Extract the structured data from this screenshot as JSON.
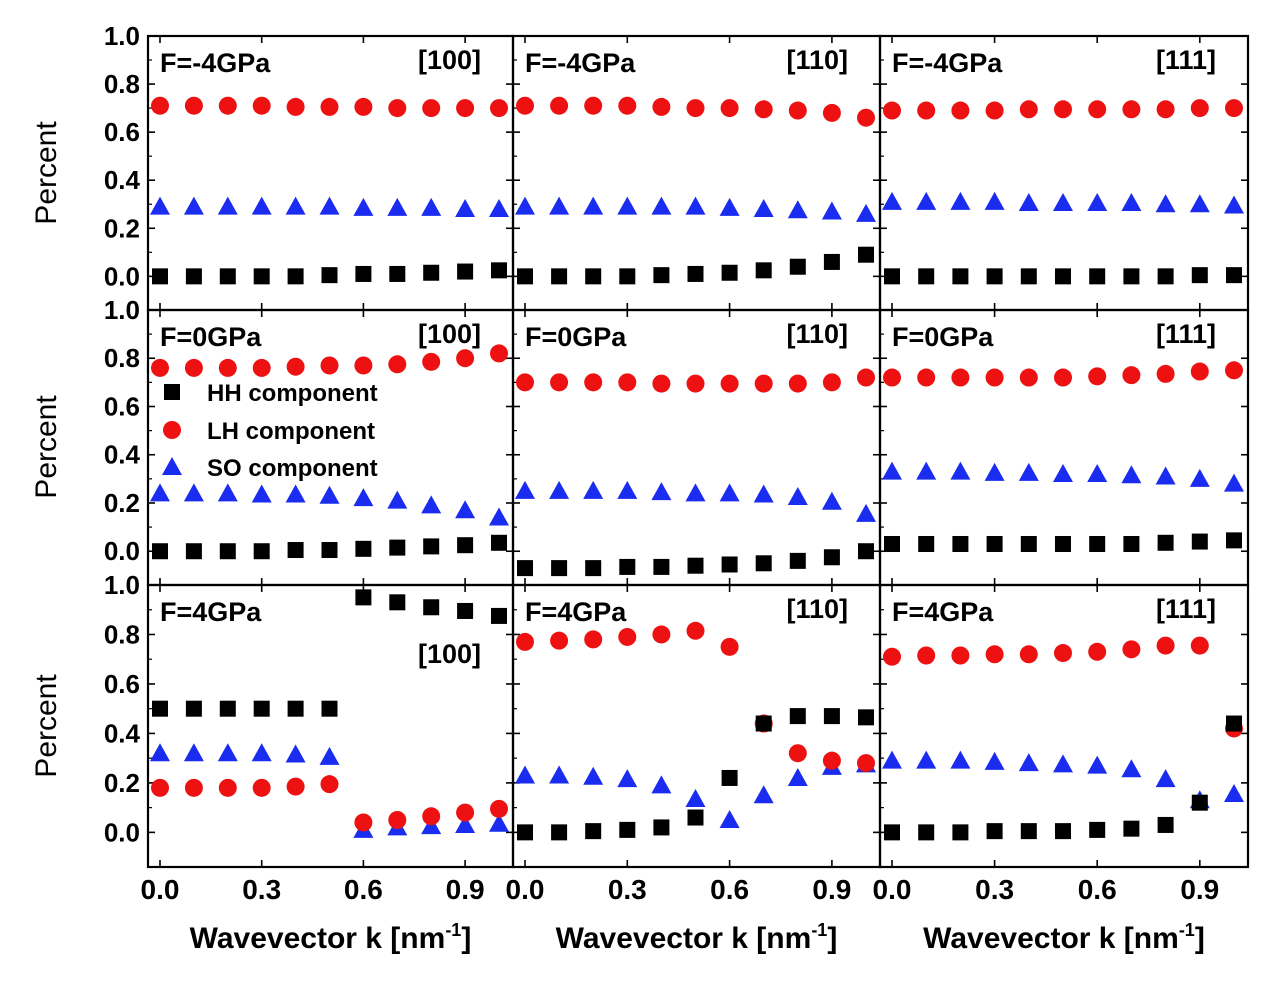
{
  "figure": {
    "y_label": "Percent",
    "x_label": "Wavevector k [nm",
    "x_label_sup": "-1",
    "x_label_end": "]",
    "ylim": [
      -0.14,
      1.0
    ],
    "xlim": [
      -0.03,
      1.03
    ],
    "y_ticks": [
      "1.0",
      "0.8",
      "0.6",
      "0.4",
      "0.2",
      "0.0"
    ],
    "y_tick_values": [
      1.0,
      0.8,
      0.6,
      0.4,
      0.2,
      0.0
    ],
    "x_ticks": [
      "0.0",
      "0.3",
      "0.6",
      "0.9"
    ],
    "x_tick_values": [
      0.0,
      0.3,
      0.6,
      0.9
    ],
    "legend": {
      "hh": "HH component",
      "lh": "LH component",
      "so": "SO component"
    },
    "colors": {
      "hh": "#000000",
      "lh": "#ee1111",
      "so": "#1a2cf0"
    }
  },
  "chart_data": [
    {
      "type": "scatter",
      "row": 0,
      "col": 0,
      "force": "F=-4GPa",
      "direction": "[100]",
      "x": [
        0.0,
        0.1,
        0.2,
        0.3,
        0.4,
        0.5,
        0.6,
        0.7,
        0.8,
        0.9,
        1.0
      ],
      "series": [
        {
          "name": "HH component",
          "values": [
            0.0,
            0.0,
            0.0,
            0.0,
            0.0,
            0.005,
            0.01,
            0.01,
            0.015,
            0.02,
            0.025
          ]
        },
        {
          "name": "LH component",
          "values": [
            0.71,
            0.71,
            0.71,
            0.71,
            0.705,
            0.705,
            0.705,
            0.7,
            0.7,
            0.7,
            0.7
          ]
        },
        {
          "name": "SO component",
          "values": [
            0.29,
            0.29,
            0.29,
            0.29,
            0.29,
            0.29,
            0.285,
            0.285,
            0.285,
            0.28,
            0.28
          ]
        }
      ]
    },
    {
      "type": "scatter",
      "row": 0,
      "col": 1,
      "force": "F=-4GPa",
      "direction": "[110]",
      "x": [
        0.0,
        0.1,
        0.2,
        0.3,
        0.4,
        0.5,
        0.6,
        0.7,
        0.8,
        0.9,
        1.0
      ],
      "series": [
        {
          "name": "HH component",
          "values": [
            0.0,
            0.0,
            0.0,
            0.0,
            0.005,
            0.01,
            0.015,
            0.025,
            0.04,
            0.06,
            0.09
          ]
        },
        {
          "name": "LH component",
          "values": [
            0.71,
            0.71,
            0.71,
            0.71,
            0.705,
            0.7,
            0.7,
            0.695,
            0.69,
            0.68,
            0.66
          ]
        },
        {
          "name": "SO component",
          "values": [
            0.29,
            0.29,
            0.29,
            0.29,
            0.29,
            0.29,
            0.285,
            0.28,
            0.275,
            0.27,
            0.26
          ]
        }
      ]
    },
    {
      "type": "scatter",
      "row": 0,
      "col": 2,
      "force": "F=-4GPa",
      "direction": "[111]",
      "x": [
        0.0,
        0.1,
        0.2,
        0.3,
        0.4,
        0.5,
        0.6,
        0.7,
        0.8,
        0.9,
        1.0
      ],
      "series": [
        {
          "name": "HH component",
          "values": [
            0.0,
            0.0,
            0.0,
            0.0,
            0.0,
            0.0,
            0.0,
            0.0,
            0.0,
            0.005,
            0.005
          ]
        },
        {
          "name": "LH component",
          "values": [
            0.69,
            0.69,
            0.69,
            0.69,
            0.695,
            0.695,
            0.695,
            0.695,
            0.695,
            0.7,
            0.7
          ]
        },
        {
          "name": "SO component",
          "values": [
            0.31,
            0.31,
            0.31,
            0.31,
            0.305,
            0.305,
            0.305,
            0.305,
            0.3,
            0.3,
            0.295
          ]
        }
      ]
    },
    {
      "type": "scatter",
      "row": 1,
      "col": 0,
      "force": "F=0GPa",
      "direction": "[100]",
      "x": [
        0.0,
        0.1,
        0.2,
        0.3,
        0.4,
        0.5,
        0.6,
        0.7,
        0.8,
        0.9,
        1.0
      ],
      "series": [
        {
          "name": "HH component",
          "values": [
            0.0,
            0.0,
            0.0,
            0.0,
            0.005,
            0.005,
            0.01,
            0.015,
            0.02,
            0.025,
            0.035
          ]
        },
        {
          "name": "LH component",
          "values": [
            0.76,
            0.76,
            0.76,
            0.76,
            0.765,
            0.77,
            0.77,
            0.775,
            0.785,
            0.8,
            0.82
          ]
        },
        {
          "name": "SO component",
          "values": [
            0.24,
            0.24,
            0.24,
            0.235,
            0.235,
            0.23,
            0.22,
            0.21,
            0.19,
            0.17,
            0.14
          ]
        }
      ]
    },
    {
      "type": "scatter",
      "row": 1,
      "col": 1,
      "force": "F=0GPa",
      "direction": "[110]",
      "x": [
        0.0,
        0.1,
        0.2,
        0.3,
        0.4,
        0.5,
        0.6,
        0.7,
        0.8,
        0.9,
        1.0
      ],
      "series": [
        {
          "name": "HH component",
          "values": [
            -0.07,
            -0.07,
            -0.07,
            -0.065,
            -0.065,
            -0.06,
            -0.055,
            -0.05,
            -0.04,
            -0.025,
            0.0
          ]
        },
        {
          "name": "LH component",
          "values": [
            0.7,
            0.7,
            0.7,
            0.7,
            0.695,
            0.695,
            0.695,
            0.695,
            0.695,
            0.7,
            0.72
          ]
        },
        {
          "name": "SO component",
          "values": [
            0.25,
            0.25,
            0.25,
            0.25,
            0.245,
            0.24,
            0.24,
            0.235,
            0.225,
            0.205,
            0.155
          ]
        }
      ]
    },
    {
      "type": "scatter",
      "row": 1,
      "col": 2,
      "force": "F=0GPa",
      "direction": "[111]",
      "x": [
        0.0,
        0.1,
        0.2,
        0.3,
        0.4,
        0.5,
        0.6,
        0.7,
        0.8,
        0.9,
        1.0
      ],
      "series": [
        {
          "name": "HH component",
          "values": [
            0.03,
            0.03,
            0.03,
            0.03,
            0.03,
            0.03,
            0.03,
            0.03,
            0.035,
            0.04,
            0.045
          ]
        },
        {
          "name": "LH component",
          "values": [
            0.72,
            0.72,
            0.72,
            0.72,
            0.72,
            0.72,
            0.725,
            0.73,
            0.735,
            0.745,
            0.75
          ]
        },
        {
          "name": "SO component",
          "values": [
            0.33,
            0.33,
            0.33,
            0.325,
            0.325,
            0.32,
            0.32,
            0.315,
            0.31,
            0.3,
            0.28
          ]
        }
      ]
    },
    {
      "type": "scatter",
      "row": 2,
      "col": 0,
      "force": "F=4GPa",
      "direction": "[100]",
      "x": [
        0.0,
        0.1,
        0.2,
        0.3,
        0.4,
        0.5,
        0.6,
        0.7,
        0.8,
        0.9,
        1.0
      ],
      "series": [
        {
          "name": "HH component",
          "values": [
            0.5,
            0.5,
            0.5,
            0.5,
            0.5,
            0.5,
            0.95,
            0.93,
            0.91,
            0.895,
            0.875
          ]
        },
        {
          "name": "LH component",
          "values": [
            0.18,
            0.18,
            0.18,
            0.18,
            0.185,
            0.195,
            0.04,
            0.05,
            0.065,
            0.08,
            0.095
          ]
        },
        {
          "name": "SO component",
          "values": [
            0.32,
            0.32,
            0.32,
            0.32,
            0.315,
            0.305,
            0.01,
            0.02,
            0.025,
            0.03,
            0.035
          ]
        }
      ]
    },
    {
      "type": "scatter",
      "row": 2,
      "col": 1,
      "force": "F=4GPa",
      "direction": "[110]",
      "x": [
        0.0,
        0.1,
        0.2,
        0.3,
        0.4,
        0.5,
        0.6,
        0.7,
        0.8,
        0.9,
        1.0
      ],
      "series": [
        {
          "name": "HH component",
          "values": [
            0.0,
            0.0,
            0.005,
            0.01,
            0.02,
            0.06,
            0.22,
            0.44,
            0.47,
            0.47,
            0.465
          ]
        },
        {
          "name": "LH component",
          "values": [
            0.77,
            0.775,
            0.78,
            0.79,
            0.8,
            0.815,
            0.75,
            0.44,
            0.32,
            0.29,
            0.28
          ]
        },
        {
          "name": "SO component",
          "values": [
            0.23,
            0.23,
            0.225,
            0.215,
            0.19,
            0.135,
            0.05,
            0.15,
            0.22,
            0.265,
            0.275
          ]
        }
      ]
    },
    {
      "type": "scatter",
      "row": 2,
      "col": 2,
      "force": "F=4GPa",
      "direction": "[111]",
      "x": [
        0.0,
        0.1,
        0.2,
        0.3,
        0.4,
        0.5,
        0.6,
        0.7,
        0.8,
        0.9,
        1.0
      ],
      "series": [
        {
          "name": "HH component",
          "values": [
            0.0,
            0.0,
            0.0,
            0.005,
            0.005,
            0.005,
            0.01,
            0.015,
            0.03,
            0.12,
            0.44
          ]
        },
        {
          "name": "LH component",
          "values": [
            0.71,
            0.715,
            0.715,
            0.72,
            0.72,
            0.725,
            0.73,
            0.74,
            0.755,
            0.755,
            0.42
          ]
        },
        {
          "name": "SO component",
          "values": [
            0.29,
            0.29,
            0.29,
            0.285,
            0.28,
            0.275,
            0.27,
            0.255,
            0.215,
            0.13,
            0.155
          ]
        }
      ]
    }
  ]
}
